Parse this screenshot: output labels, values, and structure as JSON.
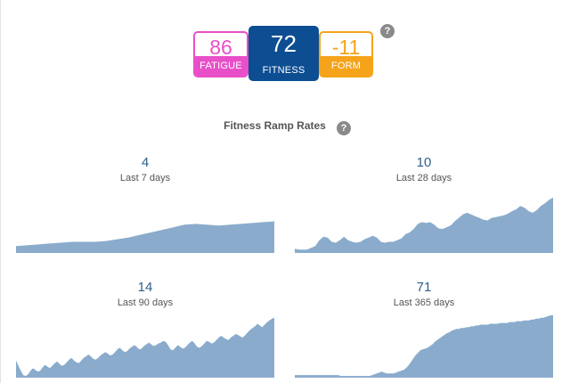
{
  "metrics": {
    "fatigue": {
      "value": "86",
      "label": "FATIGUE",
      "color": "#e84fc9"
    },
    "fitness": {
      "value": "72",
      "label": "FITNESS",
      "color": "#0d4d92"
    },
    "form": {
      "value": "-11",
      "label": "FORM",
      "color": "#f5a31a"
    },
    "help_icon": "question-circle-icon"
  },
  "ramp": {
    "title": "Fitness Ramp Rates",
    "help_icon": "question-circle-icon",
    "area_color": "#8aabcc",
    "panels": [
      {
        "id": "7",
        "value": "4",
        "period": "Last 7 days",
        "series": [
          8,
          9,
          10,
          11,
          12,
          13,
          13,
          13,
          14,
          16,
          18,
          21,
          24,
          27,
          30,
          33,
          34,
          33,
          32,
          33,
          34,
          35,
          36,
          37
        ]
      },
      {
        "id": "28",
        "value": "10",
        "period": "Last 28 days",
        "series": [
          5,
          4,
          4,
          4,
          6,
          8,
          15,
          19,
          18,
          13,
          12,
          15,
          19,
          15,
          13,
          12,
          13,
          16,
          18,
          20,
          18,
          13,
          12,
          13,
          13,
          15,
          17,
          22,
          24,
          28,
          34,
          36,
          35,
          36,
          33,
          29,
          28,
          30,
          32,
          37,
          41,
          45,
          47,
          45,
          43,
          41,
          39,
          38,
          41,
          42,
          43,
          44,
          46,
          49,
          51,
          55,
          53,
          49,
          47,
          50,
          55,
          58,
          62,
          65
        ]
      },
      {
        "id": "90",
        "value": "14",
        "period": "Last 90 days",
        "series": [
          20,
          14,
          8,
          3,
          2,
          4,
          8,
          11,
          9,
          7,
          8,
          12,
          15,
          13,
          11,
          14,
          17,
          19,
          16,
          14,
          15,
          18,
          21,
          23,
          20,
          18,
          17,
          20,
          23,
          25,
          27,
          25,
          22,
          21,
          23,
          26,
          28,
          30,
          28,
          26,
          27,
          30,
          33,
          35,
          32,
          30,
          31,
          34,
          36,
          38,
          36,
          33,
          34,
          37,
          39,
          41,
          39,
          37,
          38,
          40,
          41,
          43,
          42,
          38,
          33,
          32,
          35,
          38,
          36,
          34,
          35,
          38,
          41,
          43,
          40,
          36,
          35,
          37,
          40,
          43,
          42,
          40,
          41,
          44,
          47,
          49,
          47,
          45,
          44,
          47,
          49,
          51,
          50,
          48,
          47,
          50,
          53,
          56,
          58,
          60,
          63,
          61,
          59,
          62,
          65,
          67,
          69,
          70
        ]
      },
      {
        "id": "365",
        "value": "71",
        "period": "Last 365 days",
        "series": [
          3,
          3,
          3,
          3,
          3,
          3,
          3,
          3,
          3,
          3,
          3,
          3,
          3,
          3,
          3,
          3,
          3,
          3,
          3,
          2,
          2,
          2,
          2,
          2,
          2,
          2,
          2,
          2,
          2,
          2,
          2,
          2,
          3,
          4,
          5,
          6,
          7,
          6,
          5,
          5,
          5,
          5,
          6,
          7,
          8,
          9,
          11,
          14,
          18,
          22,
          26,
          29,
          32,
          33,
          34,
          35,
          37,
          39,
          42,
          44,
          46,
          48,
          50,
          52,
          53,
          55,
          56,
          57,
          57,
          58,
          58,
          59,
          59,
          60,
          60,
          61,
          61,
          62,
          62,
          62,
          62,
          63,
          63,
          63,
          63,
          64,
          64,
          64,
          64,
          65,
          65,
          65,
          66,
          66,
          66,
          67,
          67,
          67,
          68,
          68,
          69,
          69,
          70,
          70,
          71,
          72,
          73,
          73
        ]
      }
    ]
  }
}
